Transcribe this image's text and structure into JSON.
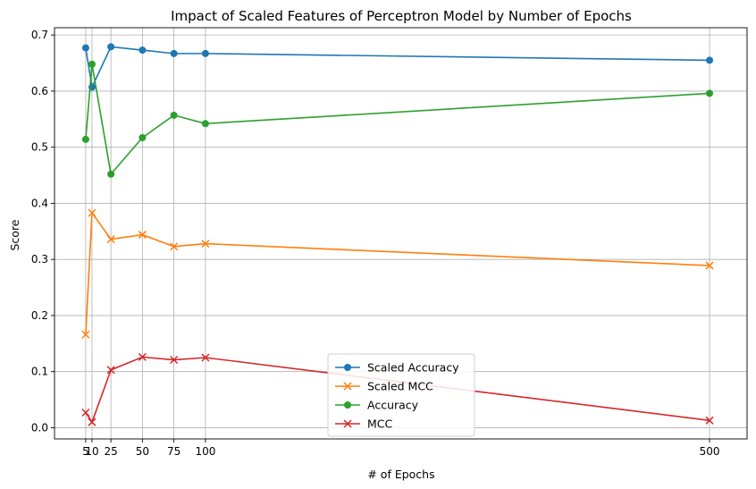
{
  "chart_data": {
    "type": "line",
    "title": "Impact of Scaled Features of Perceptron Model by Number of Epochs",
    "xlabel": "# of Epochs",
    "ylabel": "Score",
    "x": [
      5,
      10,
      25,
      50,
      75,
      100,
      500
    ],
    "x_tick_labels": [
      "5",
      "10",
      "25",
      "50",
      "75",
      "100",
      "500"
    ],
    "xlim": [
      -19.75,
      529.75
    ],
    "ylim": [
      -0.02,
      0.713
    ],
    "y_ticks": [
      0.0,
      0.1,
      0.2,
      0.3,
      0.4,
      0.5,
      0.6,
      0.7
    ],
    "y_tick_labels": [
      "0.0",
      "0.1",
      "0.2",
      "0.3",
      "0.4",
      "0.5",
      "0.6",
      "0.7"
    ],
    "grid": true,
    "legend_position": "bottom-center",
    "series": [
      {
        "name": "Scaled Accuracy",
        "color": "#1f77b4",
        "marker": "circle",
        "values": [
          0.677,
          0.607,
          0.679,
          0.673,
          0.667,
          0.667,
          0.655
        ]
      },
      {
        "name": "Scaled MCC",
        "color": "#ff7f0e",
        "marker": "x",
        "values": [
          0.166,
          0.383,
          0.336,
          0.344,
          0.323,
          0.328,
          0.289
        ]
      },
      {
        "name": "Accuracy",
        "color": "#2ca02c",
        "marker": "circle",
        "values": [
          0.514,
          0.648,
          0.452,
          0.517,
          0.557,
          0.542,
          0.596
        ]
      },
      {
        "name": "MCC",
        "color": "#d62728",
        "marker": "x",
        "values": [
          0.027,
          0.01,
          0.103,
          0.126,
          0.121,
          0.125,
          0.013
        ]
      }
    ]
  }
}
